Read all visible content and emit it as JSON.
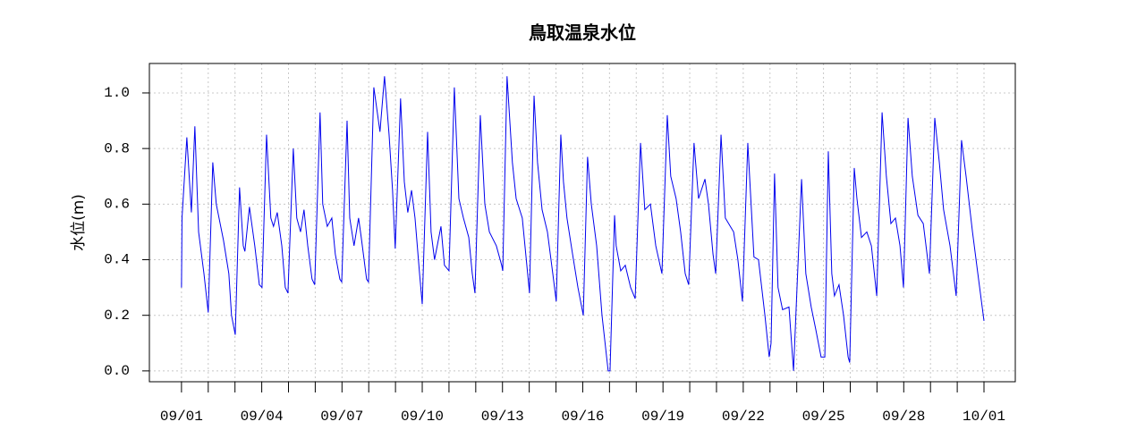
{
  "chart_data": {
    "type": "line",
    "title": "鳥取温泉水位",
    "y_label": "水位(m)",
    "x": [
      0,
      0.02,
      0.2,
      0.37,
      0.5,
      0.64,
      0.84,
      1.0,
      1.17,
      1.3,
      1.57,
      1.77,
      1.87,
      2.01,
      2.17,
      2.31,
      2.37,
      2.54,
      2.74,
      2.91,
      3.01,
      3.18,
      3.34,
      3.44,
      3.58,
      3.75,
      3.88,
      3.98,
      4.18,
      4.31,
      4.45,
      4.58,
      4.72,
      4.88,
      4.98,
      5.18,
      5.28,
      5.45,
      5.62,
      5.75,
      5.92,
      5.99,
      6.19,
      6.29,
      6.45,
      6.62,
      6.72,
      6.92,
      6.99,
      7.19,
      7.32,
      7.42,
      7.59,
      7.76,
      7.89,
      7.99,
      8.19,
      8.33,
      8.46,
      8.6,
      8.73,
      8.9,
      9.0,
      9.2,
      9.33,
      9.46,
      9.7,
      9.83,
      10.0,
      10.2,
      10.37,
      10.54,
      10.74,
      10.87,
      10.97,
      11.17,
      11.34,
      11.51,
      11.77,
      11.97,
      12.01,
      12.17,
      12.37,
      12.51,
      12.74,
      12.94,
      13.01,
      13.18,
      13.31,
      13.48,
      13.68,
      13.88,
      14.01,
      14.18,
      14.28,
      14.41,
      14.62,
      14.82,
      15.02,
      15.18,
      15.32,
      15.52,
      15.72,
      15.95,
      16.02,
      16.19,
      16.25,
      16.42,
      16.59,
      16.79,
      16.96,
      17.16,
      17.32,
      17.53,
      17.73,
      17.96,
      18.16,
      18.29,
      18.49,
      18.66,
      18.83,
      18.96,
      19.16,
      19.33,
      19.57,
      19.7,
      19.87,
      19.97,
      20.17,
      20.33,
      20.64,
      20.8,
      20.97,
      21.17,
      21.4,
      21.57,
      21.81,
      21.97,
      22.04,
      22.17,
      22.3,
      22.47,
      22.71,
      22.88,
      23.18,
      23.34,
      23.54,
      23.71,
      23.91,
      24.05,
      24.18,
      24.31,
      24.41,
      24.58,
      24.75,
      24.92,
      24.98,
      25.15,
      25.25,
      25.42,
      25.62,
      25.79,
      25.99,
      26.19,
      26.35,
      26.52,
      26.69,
      26.86,
      26.99,
      27.16,
      27.32,
      27.53,
      27.73,
      27.96,
      28.16,
      28.33,
      28.49,
      28.73,
      28.96,
      29.16,
      29.33,
      29.57,
      29.77,
      30.0
    ],
    "series": [
      {
        "name": "水位",
        "color": "#0000ee",
        "values": [
          0.3,
          0.55,
          0.84,
          0.57,
          0.88,
          0.5,
          0.35,
          0.21,
          0.75,
          0.6,
          0.47,
          0.35,
          0.2,
          0.13,
          0.66,
          0.45,
          0.43,
          0.59,
          0.45,
          0.31,
          0.3,
          0.85,
          0.55,
          0.52,
          0.57,
          0.45,
          0.3,
          0.28,
          0.8,
          0.55,
          0.5,
          0.58,
          0.45,
          0.33,
          0.31,
          0.93,
          0.6,
          0.52,
          0.55,
          0.42,
          0.33,
          0.32,
          0.9,
          0.55,
          0.45,
          0.55,
          0.48,
          0.33,
          0.32,
          1.02,
          0.93,
          0.86,
          1.06,
          0.85,
          0.65,
          0.44,
          0.98,
          0.68,
          0.57,
          0.65,
          0.55,
          0.35,
          0.24,
          0.86,
          0.5,
          0.4,
          0.52,
          0.38,
          0.36,
          1.02,
          0.62,
          0.55,
          0.48,
          0.35,
          0.28,
          0.92,
          0.6,
          0.5,
          0.45,
          0.38,
          0.36,
          1.06,
          0.75,
          0.62,
          0.55,
          0.35,
          0.28,
          0.99,
          0.75,
          0.58,
          0.5,
          0.35,
          0.25,
          0.85,
          0.68,
          0.55,
          0.42,
          0.3,
          0.2,
          0.77,
          0.6,
          0.45,
          0.2,
          0.0,
          0.0,
          0.56,
          0.45,
          0.36,
          0.38,
          0.3,
          0.26,
          0.82,
          0.58,
          0.6,
          0.45,
          0.35,
          0.92,
          0.7,
          0.62,
          0.5,
          0.35,
          0.31,
          0.82,
          0.62,
          0.69,
          0.6,
          0.42,
          0.35,
          0.85,
          0.55,
          0.5,
          0.4,
          0.25,
          0.82,
          0.41,
          0.4,
          0.2,
          0.05,
          0.1,
          0.71,
          0.3,
          0.22,
          0.23,
          0.0,
          0.69,
          0.35,
          0.23,
          0.15,
          0.05,
          0.05,
          0.79,
          0.35,
          0.27,
          0.31,
          0.2,
          0.05,
          0.03,
          0.73,
          0.62,
          0.48,
          0.5,
          0.45,
          0.27,
          0.93,
          0.7,
          0.53,
          0.55,
          0.45,
          0.3,
          0.91,
          0.7,
          0.56,
          0.53,
          0.35,
          0.91,
          0.75,
          0.58,
          0.45,
          0.27,
          0.83,
          0.7,
          0.5,
          0.35,
          0.18
        ]
      }
    ],
    "xlim": [
      -1.2,
      31.17
    ],
    "ylim": [
      -0.039,
      1.106
    ],
    "xticks": [
      {
        "value": 0,
        "label": "09/01"
      },
      {
        "value": 1,
        "label": null
      },
      {
        "value": 2,
        "label": null
      },
      {
        "value": 3,
        "label": "09/04"
      },
      {
        "value": 4,
        "label": null
      },
      {
        "value": 5,
        "label": null
      },
      {
        "value": 6,
        "label": "09/07"
      },
      {
        "value": 7,
        "label": null
      },
      {
        "value": 8,
        "label": null
      },
      {
        "value": 9,
        "label": "09/10"
      },
      {
        "value": 10,
        "label": null
      },
      {
        "value": 11,
        "label": null
      },
      {
        "value": 12,
        "label": "09/13"
      },
      {
        "value": 13,
        "label": null
      },
      {
        "value": 14,
        "label": null
      },
      {
        "value": 15,
        "label": "09/16"
      },
      {
        "value": 16,
        "label": null
      },
      {
        "value": 17,
        "label": null
      },
      {
        "value": 18,
        "label": "09/19"
      },
      {
        "value": 19,
        "label": null
      },
      {
        "value": 20,
        "label": null
      },
      {
        "value": 21,
        "label": "09/22"
      },
      {
        "value": 22,
        "label": null
      },
      {
        "value": 23,
        "label": null
      },
      {
        "value": 24,
        "label": "09/25"
      },
      {
        "value": 25,
        "label": null
      },
      {
        "value": 26,
        "label": null
      },
      {
        "value": 27,
        "label": "09/28"
      },
      {
        "value": 28,
        "label": null
      },
      {
        "value": 29,
        "label": null
      },
      {
        "value": 30,
        "label": "10/01"
      }
    ],
    "yticks": [
      {
        "value": 0,
        "label": "0.0"
      },
      0.2,
      0.4,
      0.6,
      0.8,
      {
        "value": 1,
        "label": "1.0"
      }
    ],
    "grid": true
  }
}
